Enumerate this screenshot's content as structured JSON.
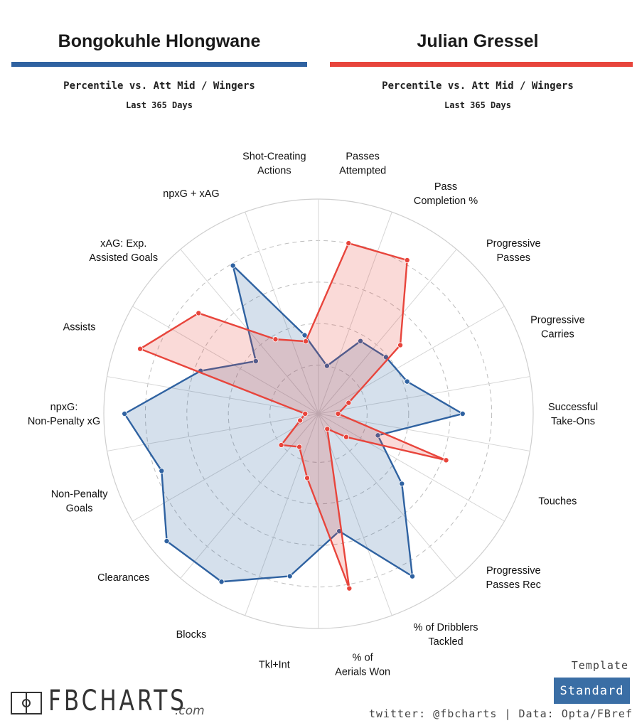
{
  "players": {
    "left": {
      "name": "Bongokuhle Hlongwane",
      "color": "#2f62a1"
    },
    "right": {
      "name": "Julian Gressel",
      "color": "#e8453c"
    }
  },
  "subtitle": "Percentile vs. Att Mid / Wingers",
  "period": "Last 365 Days",
  "template": {
    "label": "Template",
    "value": "Standard"
  },
  "credit": "twitter: @fbcharts | Data: Opta/FBref",
  "logo": {
    "main": "FBCHARTS",
    "suffix": ".com"
  },
  "chart_data": {
    "type": "radar",
    "range": [
      0,
      100
    ],
    "grid_levels": [
      20,
      40,
      60,
      80,
      100
    ],
    "categories": [
      "Passes Attempted",
      "Pass Completion %",
      "Progressive Passes",
      "Progressive Carries",
      "Successful Take-Ons",
      "Touches",
      "Progressive Passes Rec",
      "% of Dribblers Tackled",
      "% of Aerials Won",
      "Tkl+Int",
      "Blocks",
      "Clearances",
      "Non-Penalty Goals",
      "npxG: Non-Penalty xG",
      "Assists",
      "xAG: Exp. Assisted Goals",
      "npxG + xAG",
      "Shot-Creating Actions"
    ],
    "series": [
      {
        "name": "Bongokuhle Hlongwane",
        "color": "#2f62a1",
        "values": [
          20,
          37,
          39,
          42,
          66,
          27,
          49,
          87,
          54,
          76,
          90,
          92,
          77,
          90,
          57,
          36,
          79,
          35
        ]
      },
      {
        "name": "Julian Gressel",
        "color": "#e8453c",
        "values": [
          80,
          82,
          48,
          12,
          6,
          62,
          14,
          5,
          82,
          28,
          15,
          20,
          6,
          3,
          88,
          72,
          38,
          32
        ]
      }
    ]
  }
}
